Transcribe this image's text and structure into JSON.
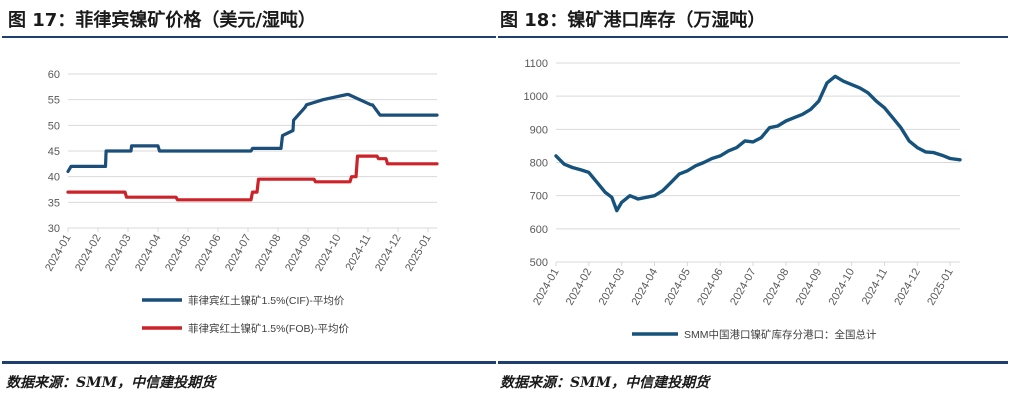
{
  "colors": {
    "navy": "#1f3f6e",
    "blue": "#1b4f7a",
    "red": "#cc2229",
    "teal": "#15527c",
    "grid": "#d9d9d9",
    "axis_text": "#595959"
  },
  "chart_data": [
    {
      "type": "line",
      "title": "图 17：菲律宾镍矿价格（美元/湿吨）",
      "source": "数据来源：SMM，中信建投期货",
      "ylim": [
        30,
        60
      ],
      "yticks": [
        "30",
        "35",
        "40",
        "45",
        "50",
        "55",
        "60"
      ],
      "xlim": [
        0,
        12.3
      ],
      "xticks": [
        "2024-01",
        "2024-02",
        "2024-03",
        "2024-04",
        "2024-05",
        "2024-06",
        "2024-07",
        "2024-08",
        "2024-09",
        "2024-10",
        "2024-11",
        "2024-12",
        "2025-01"
      ],
      "legend": "bottom",
      "series": [
        {
          "name": "菲律宾红土镍矿1.5%(CIF)-平均价",
          "color": "#1b4f7a",
          "x": [
            0,
            0.1,
            0.7,
            0.72,
            1.25,
            1.27,
            1.4,
            1.45,
            2.1,
            2.12,
            3.0,
            3.05,
            6.1,
            6.15,
            6.3,
            6.5,
            6.6,
            6.8,
            6.9,
            7.05,
            7.1,
            7.15,
            7.5,
            7.52,
            7.9,
            7.95,
            8.5,
            9.3,
            9.35,
            10.1,
            10.15,
            10.4,
            10.45,
            11.5,
            12.3
          ],
          "y": [
            41,
            42,
            42,
            42,
            42,
            45,
            45,
            45,
            45,
            46,
            46,
            45,
            45,
            45.5,
            45.5,
            45.5,
            45.5,
            45.5,
            45.5,
            45.5,
            45.5,
            48,
            49,
            51,
            53.5,
            54,
            55,
            56,
            56,
            54,
            54,
            52,
            52,
            52,
            52
          ]
        },
        {
          "name": "菲律宾红土镍矿1.5%(FOB)-平均价",
          "color": "#cc2229",
          "x": [
            0,
            1.9,
            1.95,
            3.6,
            3.65,
            6.1,
            6.15,
            6.3,
            6.35,
            6.5,
            6.55,
            8.2,
            8.25,
            9.4,
            9.45,
            9.6,
            9.65,
            10.3,
            10.35,
            10.6,
            10.65,
            12.3
          ],
          "y": [
            37,
            37,
            36,
            36,
            35.5,
            35.5,
            37,
            37,
            39.5,
            39.5,
            39.5,
            39.5,
            39,
            39,
            40,
            40,
            44,
            44,
            43.5,
            43.5,
            42.5,
            42.5
          ]
        }
      ]
    },
    {
      "type": "line",
      "title": "图 18：镍矿港口库存（万湿吨）",
      "source": "数据来源：SMM，中信建投期货",
      "ylim": [
        500,
        1100
      ],
      "yticks": [
        "500",
        "600",
        "700",
        "800",
        "900",
        "1000",
        "1100"
      ],
      "xlim": [
        0,
        12.3
      ],
      "xticks": [
        "2024-01",
        "2024-02",
        "2024-03",
        "2024-04",
        "2024-05",
        "2024-06",
        "2024-07",
        "2024-08",
        "2024-09",
        "2024-10",
        "2024-11",
        "2024-12",
        "2025-01"
      ],
      "legend": "bottom",
      "series": [
        {
          "name": "SMM中国港口镍矿库存分港口：全国总计",
          "color": "#15527c",
          "x": [
            0,
            0.25,
            0.5,
            0.75,
            1.0,
            1.25,
            1.5,
            1.7,
            1.85,
            2.0,
            2.25,
            2.5,
            2.75,
            3.0,
            3.25,
            3.5,
            3.75,
            4.0,
            4.25,
            4.5,
            4.75,
            5.0,
            5.25,
            5.5,
            5.75,
            6.0,
            6.25,
            6.5,
            6.75,
            7.0,
            7.25,
            7.5,
            7.75,
            8.0,
            8.25,
            8.5,
            8.75,
            9.0,
            9.25,
            9.5,
            9.75,
            10.0,
            10.25,
            10.5,
            10.75,
            11.0,
            11.25,
            11.5,
            11.75,
            12.0,
            12.3
          ],
          "y": [
            820,
            795,
            785,
            778,
            770,
            740,
            710,
            695,
            655,
            680,
            700,
            690,
            695,
            700,
            715,
            740,
            765,
            775,
            790,
            800,
            812,
            820,
            835,
            845,
            865,
            862,
            875,
            905,
            910,
            925,
            935,
            945,
            960,
            985,
            1040,
            1060,
            1045,
            1035,
            1025,
            1010,
            985,
            965,
            935,
            905,
            865,
            845,
            832,
            830,
            822,
            812,
            808
          ]
        }
      ]
    }
  ]
}
